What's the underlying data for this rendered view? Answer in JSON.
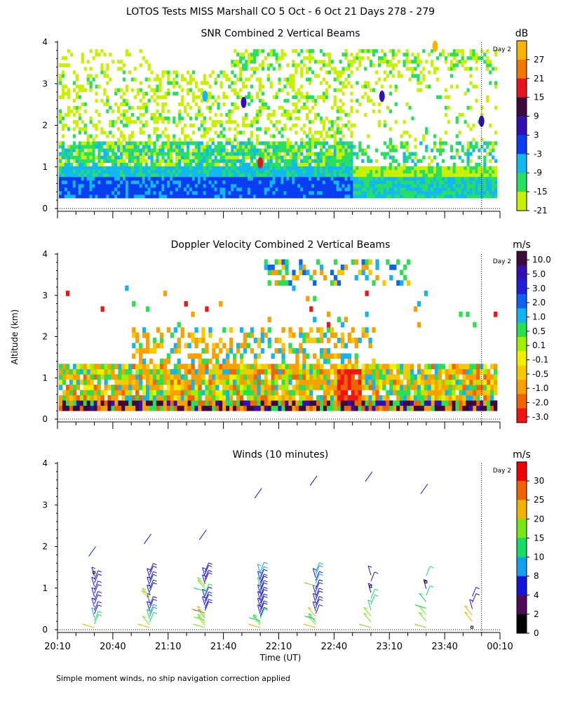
{
  "header": {
    "title": "LOTOS Tests MISS Marshall CO   5 Oct -  6 Oct 21 Days 278 - 279"
  },
  "footer": {
    "note": "Simple moment winds, no ship navigation correction applied"
  },
  "shared": {
    "ylabel": "Altitude (km)",
    "xlabel": "Time (UT)",
    "x_tick_labels": [
      "20:10",
      "20:40",
      "21:10",
      "21:40",
      "22:10",
      "22:40",
      "23:10",
      "23:40",
      "00:10"
    ],
    "y_tick_labels": [
      "0",
      "1",
      "2",
      "3",
      "4"
    ],
    "day_marker_label": "Day 2"
  },
  "chart_data": [
    {
      "type": "heatmap",
      "title": "SNR Combined 2 Vertical Beams",
      "units": "dB",
      "xlabel": "Time (UT)",
      "ylabel": "Altitude (km)",
      "xlim_hours": [
        20.1667,
        24.1667
      ],
      "ylim": [
        0,
        4
      ],
      "day_boundary_hour": 24.0,
      "colorbar": {
        "labels": [
          "27",
          "21",
          "15",
          "9",
          "3",
          "-3",
          "-9",
          "-15",
          "-21"
        ],
        "bins": [
          -21,
          -15,
          -9,
          -3,
          3,
          9,
          15,
          21,
          27,
          33
        ],
        "colors": [
          "#c8f000",
          "#28e060",
          "#12b8f0",
          "#0a3cf0",
          "#3210b4",
          "#3c0a3c",
          "#e6141e",
          "#f07800",
          "#f8b400"
        ]
      },
      "features": [
        "Strong return (-3 to 3 dB) below ~0.7 km from 20:10 to 22:50",
        "Moderate return (-9 dB) up to ~1.5 km before 22:10",
        "Weak echoes (-21 to -15 dB) scattered between 1.5 and 3.3 km",
        "Thin echo layer near 3.5-3.7 km after 21:50",
        "Strong cell near 3.9 km at about 23:35"
      ]
    },
    {
      "type": "heatmap",
      "title": "Doppler Velocity Combined 2 Vertical Beams",
      "units": "m/s",
      "xlabel": "Time (UT)",
      "ylabel": "Altitude (km)",
      "xlim_hours": [
        20.1667,
        24.1667
      ],
      "ylim": [
        0,
        4
      ],
      "day_boundary_hour": 24.0,
      "colorbar": {
        "labels": [
          "10.0",
          "5.0",
          "3.0",
          "2.0",
          "1.0",
          "0.5",
          "0.1",
          "-0.1",
          "-0.5",
          "-1.0",
          "-2.0",
          "-3.0"
        ],
        "colors": [
          "#3c0a3c",
          "#3210b4",
          "#1e1edc",
          "#0a64f0",
          "#14b4f0",
          "#28e050",
          "#a0f000",
          "#f0f000",
          "#f8c800",
          "#f8a000",
          "#f06400",
          "#f01414"
        ]
      },
      "features": [
        "Mixed downward/upward velocities (-2 to 1 m/s) below 1.8 km",
        "Strong downward motion (-2 to -3 m/s) near 22:50 below 1.3 km",
        "Sparse returns between 2 and 3.8 km"
      ]
    },
    {
      "type": "scatter",
      "title": "Winds (10 minutes)",
      "units": "m/s",
      "xlabel": "Time (UT)",
      "ylabel": "Altitude (km)",
      "xlim_hours": [
        20.1667,
        24.1667
      ],
      "ylim": [
        0,
        4
      ],
      "day_boundary_hour": 24.0,
      "colorbar": {
        "labels": [
          "30",
          "25",
          "20",
          "15",
          "10",
          "8",
          "4",
          "2",
          "0"
        ],
        "bins": [
          0,
          2,
          4,
          8,
          10,
          15,
          20,
          25,
          30,
          35
        ],
        "colors": [
          "#000000",
          "#500a5a",
          "#1414dc",
          "#14a0f0",
          "#14dc64",
          "#78e614",
          "#f0b400",
          "#f06400",
          "#f00000"
        ]
      },
      "profiles": [
        {
          "time": "20:30",
          "speeds": [
            22,
            12,
            10,
            8,
            6,
            5,
            4,
            4,
            4,
            5,
            5,
            5,
            6,
            6,
            6,
            4,
            0
          ],
          "top_km": 2.0
        },
        {
          "time": "21:00",
          "speeds": [
            20,
            15,
            12,
            10,
            9,
            8,
            7,
            6,
            5,
            5,
            20,
            18,
            6,
            5,
            5,
            4,
            4,
            5,
            5,
            4,
            3
          ],
          "top_km": 2.3
        },
        {
          "time": "21:30",
          "speeds": [
            15,
            15,
            16,
            15,
            14,
            22,
            25,
            6,
            6,
            6,
            5,
            6,
            6,
            6,
            12,
            14,
            16,
            18,
            5,
            5,
            4,
            4,
            5,
            5
          ],
          "top_km": 2.4
        },
        {
          "time": "22:00",
          "speeds": [
            20,
            18,
            14,
            14,
            12,
            6,
            6,
            6,
            5,
            6,
            6,
            6,
            6,
            6,
            6,
            5,
            5,
            6,
            10,
            5,
            4,
            5,
            5,
            9,
            9,
            9
          ],
          "top_km": 3.4
        },
        {
          "time": "22:30",
          "speeds": [
            20,
            18,
            14,
            14,
            20,
            6,
            6,
            6,
            6,
            5,
            5,
            5,
            6,
            6,
            6,
            15,
            9,
            6,
            5,
            9,
            9
          ],
          "top_km": 3.7
        },
        {
          "time": "23:00",
          "speeds": [
            18,
            16,
            15,
            12,
            10,
            10,
            6,
            0,
            6,
            6
          ],
          "top_km": 3.8
        },
        {
          "time": "23:30",
          "speeds": [
            18,
            16,
            15,
            14,
            13,
            10,
            6,
            0,
            10
          ],
          "top_km": 3.5
        },
        {
          "time": "23:55",
          "speeds": [
            0,
            22,
            22,
            6,
            6,
            6
          ],
          "top_km": 0.9
        }
      ]
    }
  ]
}
